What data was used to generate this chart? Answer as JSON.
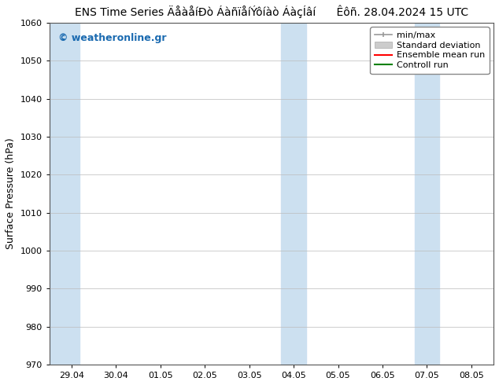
{
  "title_left": "ENS Time Series ÄåàåíÐò ÁàñïåíÝôíàò ÁàçÍâí",
  "title_right": "Êôñ. 28.04.2024 15 UTC",
  "ylabel": "Surface Pressure (hPa)",
  "ylim": [
    970,
    1060
  ],
  "yticks": [
    970,
    980,
    990,
    1000,
    1010,
    1020,
    1030,
    1040,
    1050,
    1060
  ],
  "xtick_labels": [
    "29.04",
    "30.04",
    "01.05",
    "02.05",
    "03.05",
    "04.05",
    "05.05",
    "06.05",
    "07.05",
    "08.05"
  ],
  "xtick_values": [
    0,
    1,
    2,
    3,
    4,
    5,
    6,
    7,
    8,
    9
  ],
  "xlim_left": -0.5,
  "xlim_right": 9.5,
  "shaded_bands": [
    {
      "x_start": -0.5,
      "x_end": 0.18
    },
    {
      "x_start": 4.72,
      "x_end": 5.28
    },
    {
      "x_start": 7.72,
      "x_end": 8.28
    }
  ],
  "shaded_color": "#cce0f0",
  "watermark": "© weatheronline.gr",
  "watermark_color": "#1a6ab0",
  "bg_color": "#ffffff",
  "plot_bg_color": "#ffffff",
  "grid_color": "#bbbbbb",
  "title_fontsize": 10,
  "axis_label_fontsize": 9,
  "tick_fontsize": 8,
  "legend_fontsize": 8
}
